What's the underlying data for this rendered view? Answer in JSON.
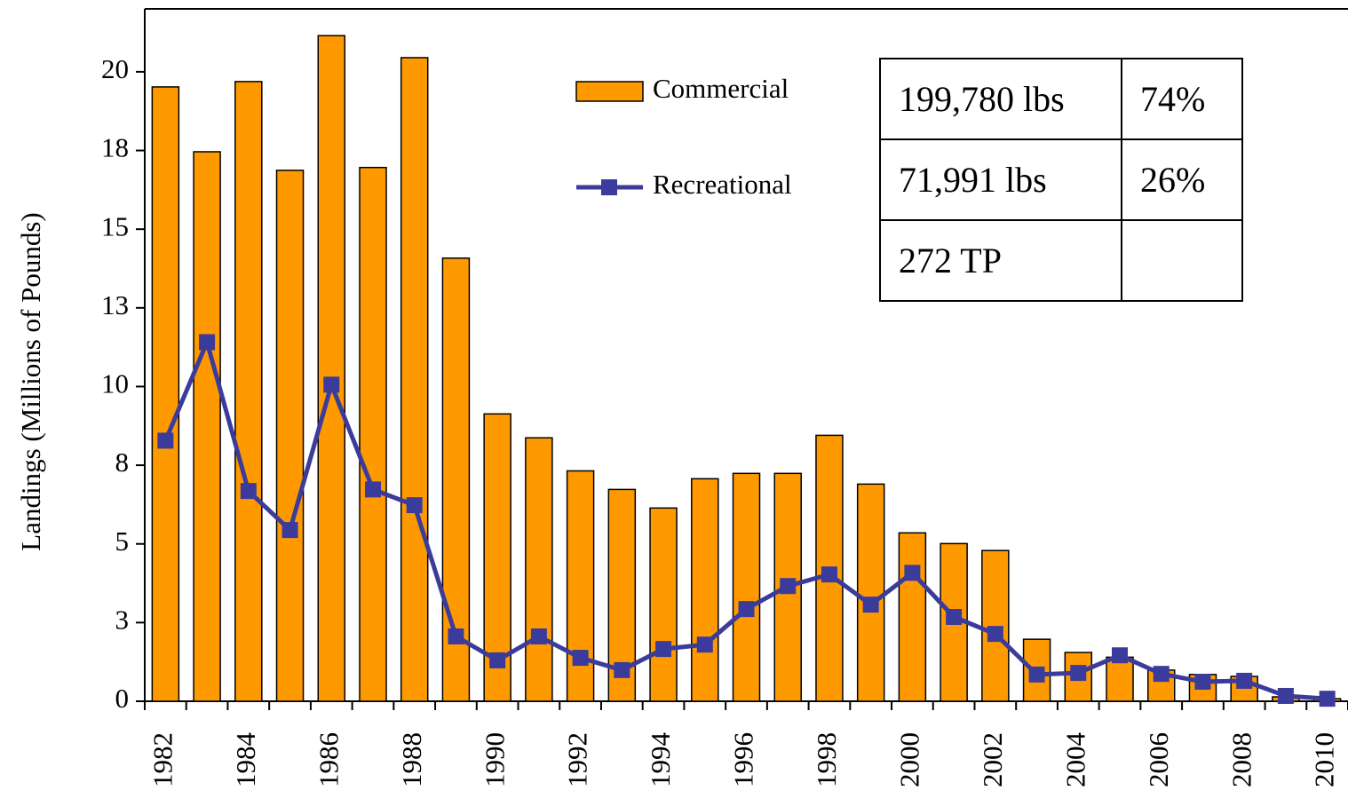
{
  "chart_data": {
    "type": "bar",
    "y_label": "Landings (Millions of Pounds)",
    "categories": [
      "1982",
      null,
      "1984",
      null,
      "1986",
      null,
      "1988",
      null,
      "1990",
      null,
      "1992",
      null,
      "1994",
      null,
      "1996",
      null,
      "1998",
      null,
      "2000",
      null,
      "2002",
      null,
      "2004",
      null,
      "2006",
      null,
      "2008",
      null,
      "2010"
    ],
    "series": [
      {
        "name": "Commercial",
        "type": "bar",
        "color": "#ff9900",
        "values": [
          19.52,
          17.46,
          19.69,
          16.87,
          21.15,
          16.96,
          20.45,
          14.08,
          9.13,
          8.37,
          7.32,
          6.73,
          6.14,
          7.07,
          7.24,
          7.24,
          8.45,
          6.9,
          5.35,
          5.01,
          4.79,
          1.97,
          1.55,
          1.4,
          0.99,
          0.85,
          0.79,
          0.14,
          0.08
        ]
      },
      {
        "name": "Recreational",
        "type": "line",
        "color": "#3b3b9c",
        "values": [
          8.28,
          11.41,
          6.68,
          5.44,
          10.06,
          6.73,
          6.23,
          2.06,
          1.3,
          2.06,
          1.38,
          0.99,
          1.66,
          1.8,
          2.93,
          3.66,
          4.03,
          3.07,
          4.08,
          2.68,
          2.14,
          0.85,
          0.9,
          1.46,
          0.87,
          0.62,
          0.65,
          0.17,
          0.08
        ]
      }
    ],
    "ylim": [
      0,
      22
    ],
    "yticks": [
      0,
      {
        "value": 2.5,
        "label": "3"
      },
      5,
      {
        "value": 7.5,
        "label": "8"
      },
      10,
      {
        "value": 12.5,
        "label": "13"
      },
      15,
      {
        "value": 17.5,
        "label": "18"
      },
      20
    ],
    "grid": false,
    "legend": "upper center"
  },
  "table": {
    "rows": [
      [
        "199,780 lbs",
        "74%"
      ],
      [
        "71,991 lbs",
        "26%"
      ],
      [
        "272 TP",
        null
      ]
    ]
  }
}
